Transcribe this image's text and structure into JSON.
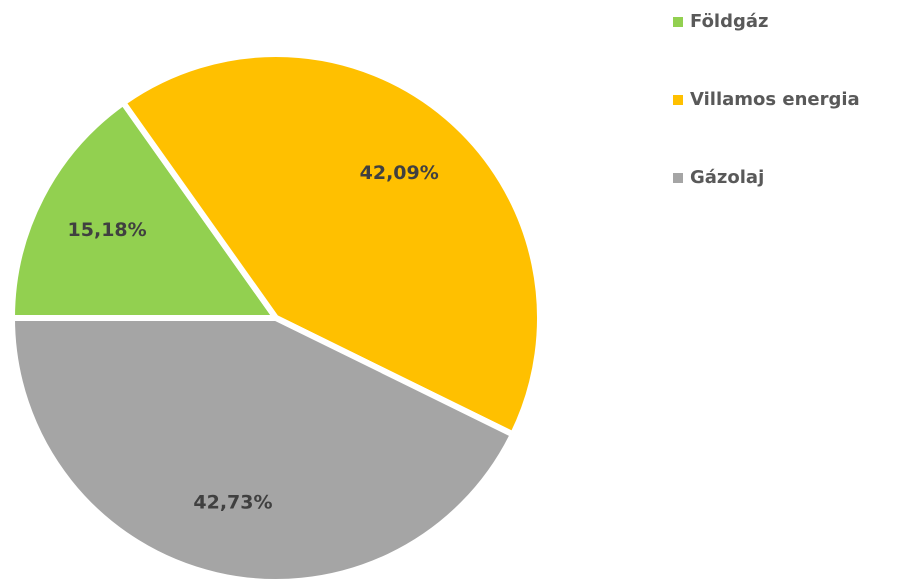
{
  "chart_data": {
    "type": "pie",
    "categories": [
      "Földgáz",
      "Villamos energia",
      "Gázolaj"
    ],
    "values": [
      15.18,
      42.09,
      42.73
    ],
    "value_labels": [
      "15,18%",
      "42,09%",
      "42,73%"
    ],
    "colors": [
      "#92d050",
      "#ffc000",
      "#a5a5a5"
    ]
  }
}
